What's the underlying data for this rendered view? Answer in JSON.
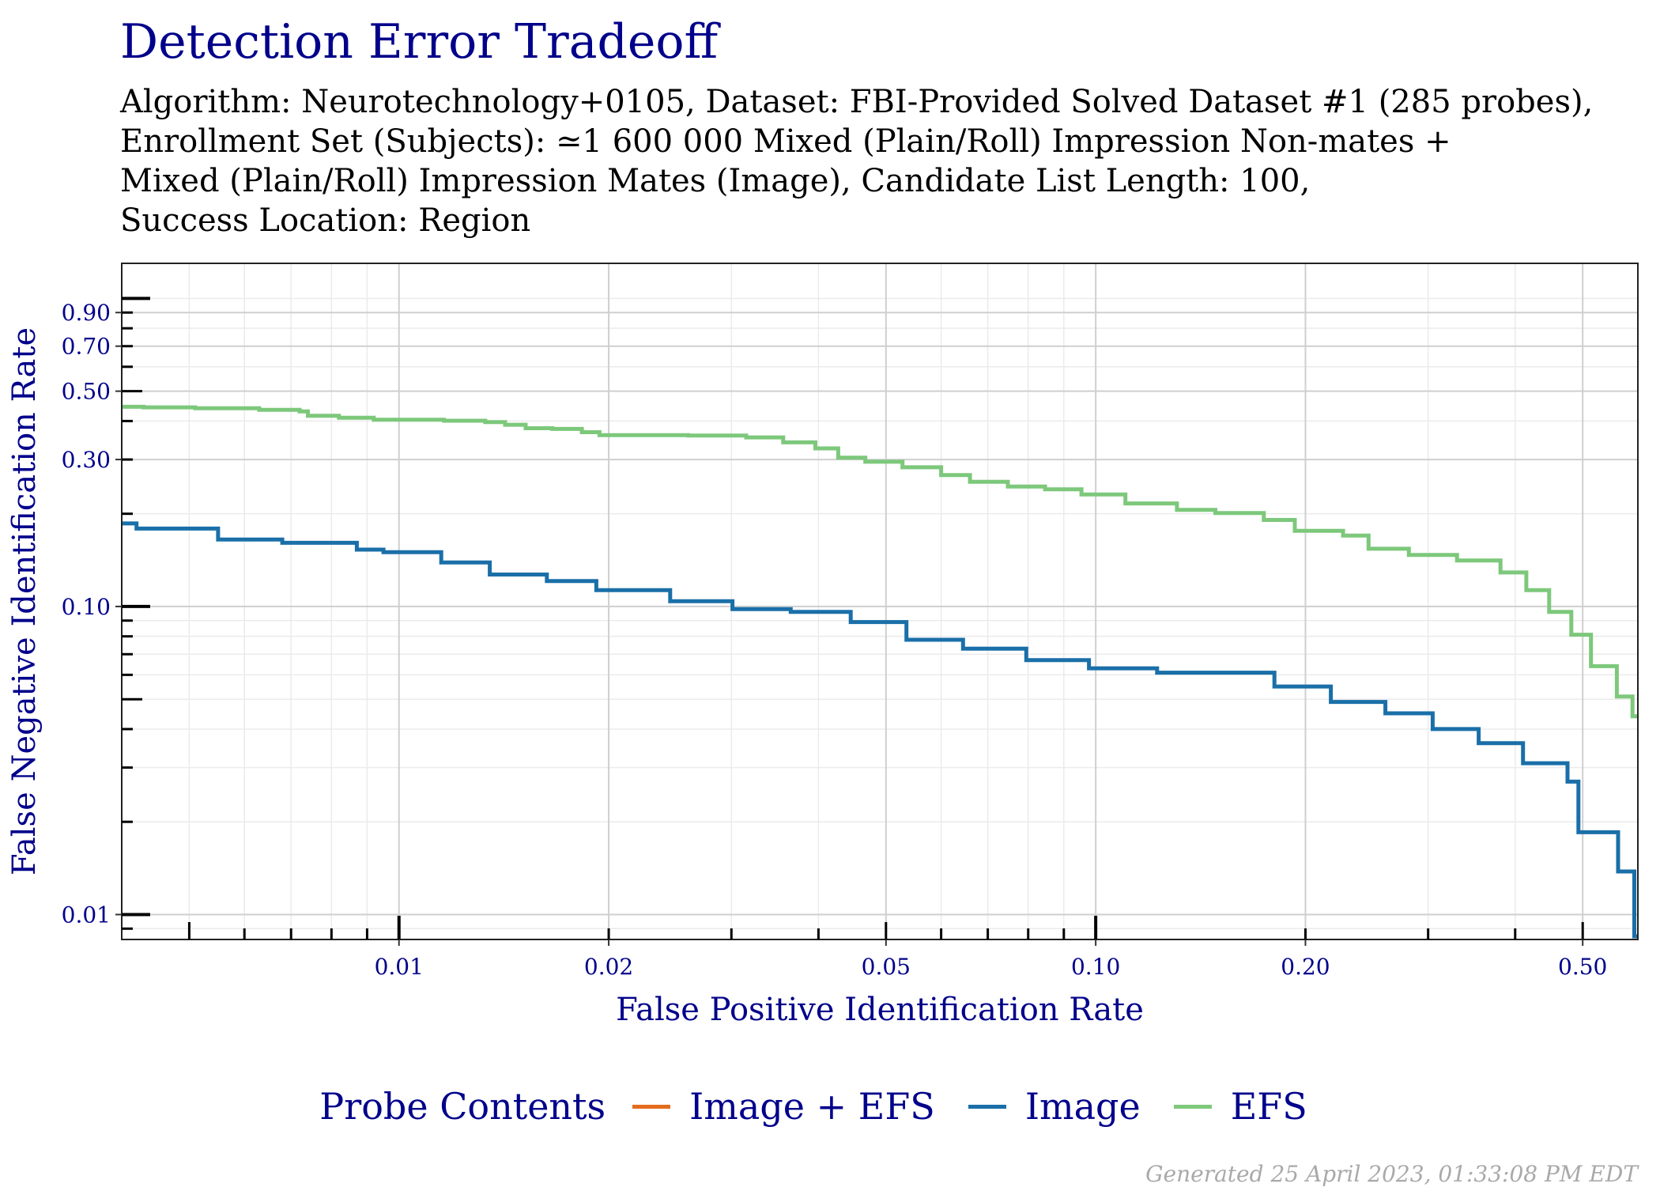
{
  "title": "Detection Error Tradeoff",
  "subtitle_lines": [
    "Algorithm: Neurotechnology+0105, Dataset: FBI-Provided Solved Dataset #1 (285 probes),",
    "Enrollment Set (Subjects): ≃1 600 000 Mixed (Plain/Roll) Impression Non-mates +",
    "Mixed (Plain/Roll) Impression Mates (Image), Candidate List Length: 100,",
    "Success Location: Region"
  ],
  "footer": "Generated 25 April 2023, 01:33:08 PM EDT",
  "legend": {
    "title": "Probe Contents",
    "items": [
      {
        "label": "Image + EFS",
        "color": "#e36c1d"
      },
      {
        "label": "Image",
        "color": "#1a6fa8"
      },
      {
        "label": "EFS",
        "color": "#7dc87b"
      }
    ]
  },
  "chart_data": {
    "type": "line",
    "step": true,
    "xlabel": "False Positive Identification Rate",
    "ylabel": "False Negative Identification Rate",
    "xscale": "log",
    "yscale": "log",
    "xlim": [
      0.004,
      0.6
    ],
    "ylim": [
      0.0083,
      1.3
    ],
    "xticks": [
      0.01,
      0.02,
      0.05,
      0.1,
      0.2,
      0.5
    ],
    "xtick_labels": [
      "0.01",
      "0.02",
      "0.05",
      "0.10",
      "0.20",
      "0.50"
    ],
    "yticks": [
      0.01,
      0.1,
      0.3,
      0.5,
      0.7,
      0.9
    ],
    "ytick_labels": [
      "0.01",
      "0.10",
      "0.30",
      "0.50",
      "0.70",
      "0.90"
    ],
    "grid": true,
    "legend_position": "bottom",
    "series": [
      {
        "name": "Image + EFS",
        "color": "#e36c1d",
        "points": []
      },
      {
        "name": "Image",
        "color": "#1a6fa8",
        "points": [
          [
            0.004,
            0.186
          ],
          [
            0.0042,
            0.179
          ],
          [
            0.0055,
            0.165
          ],
          [
            0.0068,
            0.161
          ],
          [
            0.0087,
            0.153
          ],
          [
            0.0095,
            0.15
          ],
          [
            0.0115,
            0.139
          ],
          [
            0.0135,
            0.127
          ],
          [
            0.0163,
            0.121
          ],
          [
            0.0192,
            0.113
          ],
          [
            0.0245,
            0.104
          ],
          [
            0.0301,
            0.098
          ],
          [
            0.0365,
            0.096
          ],
          [
            0.0445,
            0.089
          ],
          [
            0.0535,
            0.078
          ],
          [
            0.0645,
            0.073
          ],
          [
            0.0795,
            0.067
          ],
          [
            0.0978,
            0.063
          ],
          [
            0.1225,
            0.061
          ],
          [
            0.1805,
            0.055
          ],
          [
            0.2175,
            0.049
          ],
          [
            0.2605,
            0.045
          ],
          [
            0.3045,
            0.04
          ],
          [
            0.3545,
            0.036
          ],
          [
            0.4105,
            0.031
          ],
          [
            0.4755,
            0.027
          ],
          [
            0.493,
            0.0185
          ],
          [
            0.562,
            0.0138
          ],
          [
            0.593,
            0.0085
          ],
          [
            0.6,
            0.0085
          ]
        ]
      },
      {
        "name": "EFS",
        "color": "#7dc87b",
        "points": [
          [
            0.004,
            0.445
          ],
          [
            0.0043,
            0.443
          ],
          [
            0.0051,
            0.44
          ],
          [
            0.0063,
            0.435
          ],
          [
            0.0072,
            0.43
          ],
          [
            0.0074,
            0.416
          ],
          [
            0.0082,
            0.41
          ],
          [
            0.0092,
            0.404
          ],
          [
            0.0116,
            0.401
          ],
          [
            0.0133,
            0.397
          ],
          [
            0.0142,
            0.389
          ],
          [
            0.0152,
            0.379
          ],
          [
            0.0166,
            0.377
          ],
          [
            0.0183,
            0.368
          ],
          [
            0.0194,
            0.36
          ],
          [
            0.026,
            0.359
          ],
          [
            0.0315,
            0.354
          ],
          [
            0.0356,
            0.341
          ],
          [
            0.0396,
            0.326
          ],
          [
            0.0427,
            0.304
          ],
          [
            0.0467,
            0.295
          ],
          [
            0.0528,
            0.283
          ],
          [
            0.06,
            0.267
          ],
          [
            0.066,
            0.254
          ],
          [
            0.0748,
            0.245
          ],
          [
            0.0846,
            0.24
          ],
          [
            0.0954,
            0.231
          ],
          [
            0.1103,
            0.216
          ],
          [
            0.1308,
            0.206
          ],
          [
            0.1485,
            0.201
          ],
          [
            0.1743,
            0.191
          ],
          [
            0.1931,
            0.176
          ],
          [
            0.2265,
            0.17
          ],
          [
            0.2464,
            0.154
          ],
          [
            0.2815,
            0.147
          ],
          [
            0.33,
            0.141
          ],
          [
            0.381,
            0.129
          ],
          [
            0.415,
            0.113
          ],
          [
            0.4476,
            0.096
          ],
          [
            0.4815,
            0.081
          ],
          [
            0.5139,
            0.064
          ],
          [
            0.5597,
            0.051
          ],
          [
            0.5895,
            0.044
          ],
          [
            0.6,
            0.044
          ]
        ]
      }
    ]
  }
}
